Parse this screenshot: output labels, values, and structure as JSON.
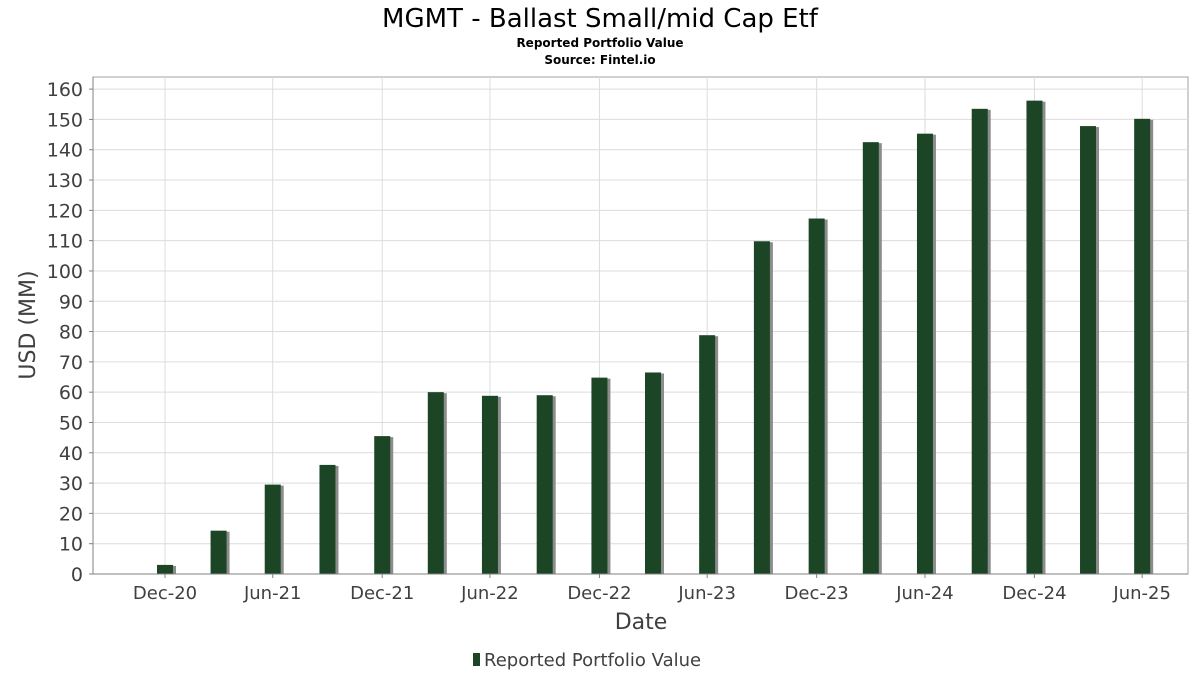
{
  "chart_data": {
    "type": "bar",
    "title": "MGMT - Ballast Small/mid Cap Etf",
    "subtitle": "Reported Portfolio Value",
    "source": "Source: Fintel.io",
    "xlabel": "Date",
    "ylabel": "USD (MM)",
    "ylim": [
      0,
      164
    ],
    "yticks": [
      0,
      10,
      20,
      30,
      40,
      50,
      60,
      70,
      80,
      90,
      100,
      110,
      120,
      130,
      140,
      150,
      160
    ],
    "xlim": [
      "2020-09-01",
      "2025-09-15"
    ],
    "xticks": [
      {
        "label": "Dec-20",
        "date": "2020-12-31"
      },
      {
        "label": "Jun-21",
        "date": "2021-06-30"
      },
      {
        "label": "Dec-21",
        "date": "2021-12-31"
      },
      {
        "label": "Jun-22",
        "date": "2022-06-30"
      },
      {
        "label": "Dec-22",
        "date": "2022-12-31"
      },
      {
        "label": "Jun-23",
        "date": "2023-06-30"
      },
      {
        "label": "Dec-23",
        "date": "2023-12-31"
      },
      {
        "label": "Jun-24",
        "date": "2024-06-30"
      },
      {
        "label": "Dec-24",
        "date": "2024-12-31"
      },
      {
        "label": "Jun-25",
        "date": "2025-06-30"
      }
    ],
    "grid": true,
    "legend_position": "bottom",
    "series": [
      {
        "name": "Reported Portfolio Value",
        "color": "#1b4524",
        "points": [
          {
            "date": "2020-12-31",
            "value": 3
          },
          {
            "date": "2021-03-31",
            "value": 14.3
          },
          {
            "date": "2021-06-30",
            "value": 29.5
          },
          {
            "date": "2021-09-30",
            "value": 36
          },
          {
            "date": "2021-12-31",
            "value": 45.5
          },
          {
            "date": "2022-03-31",
            "value": 60
          },
          {
            "date": "2022-06-30",
            "value": 58.8
          },
          {
            "date": "2022-09-30",
            "value": 59
          },
          {
            "date": "2022-12-31",
            "value": 64.8
          },
          {
            "date": "2023-03-31",
            "value": 66.5
          },
          {
            "date": "2023-06-30",
            "value": 78.8
          },
          {
            "date": "2023-09-30",
            "value": 109.8
          },
          {
            "date": "2023-12-31",
            "value": 117.3
          },
          {
            "date": "2024-03-31",
            "value": 142.5
          },
          {
            "date": "2024-06-30",
            "value": 145.3
          },
          {
            "date": "2024-09-30",
            "value": 153.5
          },
          {
            "date": "2024-12-31",
            "value": 156.2
          },
          {
            "date": "2025-03-31",
            "value": 147.8
          },
          {
            "date": "2025-06-30",
            "value": 150.2
          }
        ]
      }
    ]
  }
}
